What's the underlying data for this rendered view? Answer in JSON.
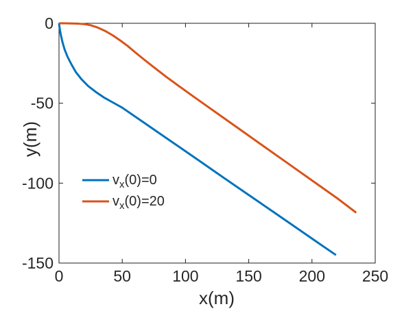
{
  "figure": {
    "background": "#ffffff",
    "axis_color": "#1c1c1c",
    "text_color": "#262626"
  },
  "chart_data": {
    "type": "line",
    "title": "",
    "xlabel": "x(m)",
    "ylabel": "y(m)",
    "xlim": [
      0,
      250
    ],
    "ylim": [
      -150,
      0
    ],
    "xticks": [
      0,
      50,
      100,
      150,
      200,
      250
    ],
    "yticks": [
      0,
      -50,
      -100,
      -150
    ],
    "grid": false,
    "box": true,
    "tick_direction": "in",
    "legend_position": "inside-left-middle",
    "legend_box": false,
    "series": [
      {
        "name": "v_x(0)=0",
        "label_parts": {
          "pre": "v",
          "sub": "x",
          "post": "(0)=0"
        },
        "color": "#0072BD",
        "line_width": 3,
        "x": [
          0,
          0.6,
          1.5,
          2.8,
          4.5,
          6.8,
          9.7,
          13.3,
          17.8,
          23,
          29,
          35.5,
          42.5,
          50,
          70,
          90,
          110,
          130,
          150,
          170,
          190,
          205,
          219
        ],
        "y": [
          0,
          -3.5,
          -7.5,
          -12,
          -16.5,
          -21,
          -25.5,
          -30.5,
          -35,
          -39.2,
          -42.9,
          -46.4,
          -49.5,
          -52.8,
          -63.7,
          -74.6,
          -85.5,
          -96.5,
          -107.4,
          -118.3,
          -129.2,
          -137.4,
          -145
        ]
      },
      {
        "name": "v_x(0)=20",
        "label_parts": {
          "pre": "v",
          "sub": "x",
          "post": "(0)=20"
        },
        "color": "#D95319",
        "line_width": 3,
        "x": [
          0,
          5,
          10,
          15,
          20,
          25,
          30,
          36,
          42,
          48,
          54,
          60,
          67,
          75,
          85,
          95,
          105,
          115,
          130,
          145,
          160,
          175,
          190,
          205,
          220,
          235
        ],
        "y": [
          0,
          0,
          -0.1,
          -0.2,
          -0.5,
          -1.2,
          -2.5,
          -4.6,
          -7.3,
          -10.5,
          -14,
          -18,
          -22.5,
          -27.5,
          -33.6,
          -39.4,
          -45.1,
          -50.7,
          -59.1,
          -67.5,
          -75.9,
          -84.3,
          -92.7,
          -101.1,
          -109.5,
          -118.5
        ]
      }
    ]
  }
}
